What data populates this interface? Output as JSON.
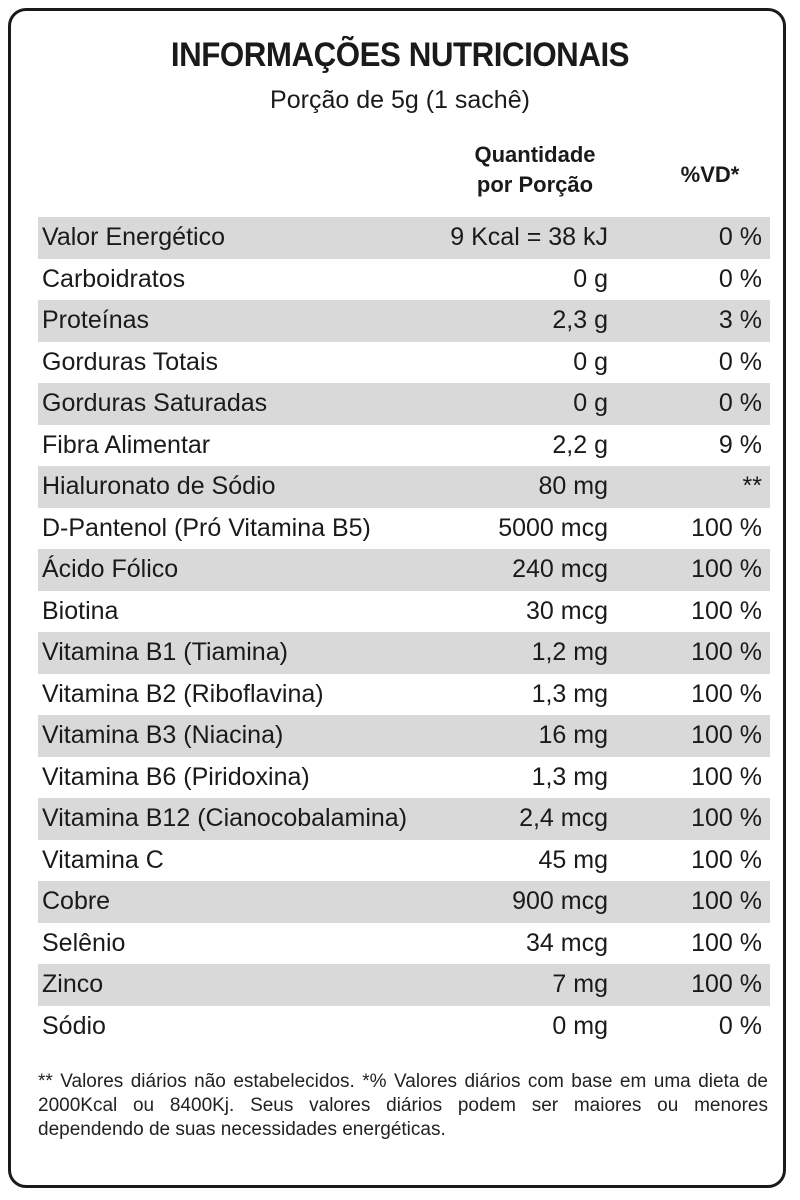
{
  "title": "INFORMAÇÕES NUTRICIONAIS",
  "subtitle": "Porção de 5g (1 sachê)",
  "headers": {
    "quantity_line1": "Quantidade",
    "quantity_line2": "por Porção",
    "vd": "%VD*"
  },
  "rows": [
    {
      "name": "Valor Energético",
      "qty": "9 Kcal = 38 kJ",
      "vd": "0 %"
    },
    {
      "name": "Carboidratos",
      "qty": "0 g",
      "vd": "0 %"
    },
    {
      "name": "Proteínas",
      "qty": "2,3 g",
      "vd": "3 %"
    },
    {
      "name": "Gorduras Totais",
      "qty": "0 g",
      "vd": "0 %"
    },
    {
      "name": "Gorduras Saturadas",
      "qty": "0 g",
      "vd": "0 %"
    },
    {
      "name": "Fibra Alimentar",
      "qty": "2,2 g",
      "vd": "9 %"
    },
    {
      "name": "Hialuronato de Sódio",
      "qty": "80 mg",
      "vd": "**"
    },
    {
      "name": "D-Pantenol (Pró Vitamina B5)",
      "qty": "5000 mcg",
      "vd": "100 %"
    },
    {
      "name": "Ácido Fólico",
      "qty": "240 mcg",
      "vd": "100 %"
    },
    {
      "name": "Biotina",
      "qty": "30 mcg",
      "vd": "100 %"
    },
    {
      "name": "Vitamina B1 (Tiamina)",
      "qty": "1,2 mg",
      "vd": "100 %"
    },
    {
      "name": "Vitamina B2 (Riboflavina)",
      "qty": "1,3 mg",
      "vd": "100 %"
    },
    {
      "name": "Vitamina B3 (Niacina)",
      "qty": "16 mg",
      "vd": "100 %"
    },
    {
      "name": "Vitamina B6 (Piridoxina)",
      "qty": "1,3 mg",
      "vd": "100 %"
    },
    {
      "name": "Vitamina B12 (Cianocobalamina)",
      "qty": "2,4 mcg",
      "vd": "100 %"
    },
    {
      "name": "Vitamina C",
      "qty": "45 mg",
      "vd": "100 %"
    },
    {
      "name": "Cobre",
      "qty": "900 mcg",
      "vd": "100 %"
    },
    {
      "name": "Selênio",
      "qty": "34 mcg",
      "vd": "100 %"
    },
    {
      "name": "Zinco",
      "qty": "7 mg",
      "vd": "100 %"
    },
    {
      "name": "Sódio",
      "qty": "0 mg",
      "vd": "0 %"
    }
  ],
  "footnote": "** Valores diários não estabelecidos. *% Valores diários com base em uma dieta de 2000Kcal ou 8400Kj. Seus valores diários podem ser maiores ou menores dependendo de suas necessidades energéticas.",
  "colors": {
    "shaded_row": "#d9d9d9",
    "text": "#1a1a1a",
    "border": "#1a1a1a"
  }
}
